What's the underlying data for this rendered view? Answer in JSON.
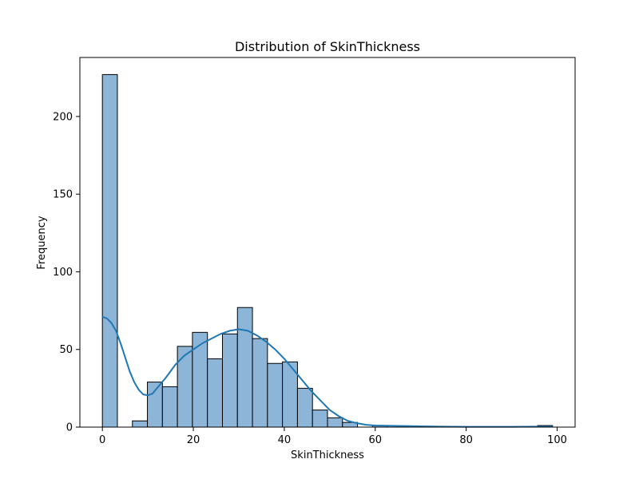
{
  "chart_data": {
    "type": "histogram",
    "title": "Distribution of SkinThickness",
    "xlabel": "SkinThickness",
    "ylabel": "Frequency",
    "xlim": [
      -4.95,
      103.95
    ],
    "ylim": [
      0,
      238
    ],
    "xticks": [
      0,
      20,
      40,
      60,
      80,
      100
    ],
    "yticks": [
      0,
      50,
      100,
      150,
      200
    ],
    "bin_width": 3.3,
    "bins": [
      {
        "start": 0.0,
        "count": 227
      },
      {
        "start": 3.3,
        "count": 0
      },
      {
        "start": 6.6,
        "count": 4
      },
      {
        "start": 9.9,
        "count": 29
      },
      {
        "start": 13.2,
        "count": 26
      },
      {
        "start": 16.5,
        "count": 52
      },
      {
        "start": 19.8,
        "count": 61
      },
      {
        "start": 23.1,
        "count": 44
      },
      {
        "start": 26.4,
        "count": 60
      },
      {
        "start": 29.7,
        "count": 77
      },
      {
        "start": 33.0,
        "count": 57
      },
      {
        "start": 36.3,
        "count": 41
      },
      {
        "start": 39.6,
        "count": 42
      },
      {
        "start": 42.9,
        "count": 25
      },
      {
        "start": 46.2,
        "count": 11
      },
      {
        "start": 49.5,
        "count": 6
      },
      {
        "start": 52.8,
        "count": 3
      },
      {
        "start": 56.1,
        "count": 0
      },
      {
        "start": 59.4,
        "count": 1
      },
      {
        "start": 62.7,
        "count": 0
      },
      {
        "start": 66.0,
        "count": 0
      },
      {
        "start": 69.3,
        "count": 0
      },
      {
        "start": 72.6,
        "count": 0
      },
      {
        "start": 75.9,
        "count": 0
      },
      {
        "start": 79.2,
        "count": 0
      },
      {
        "start": 82.5,
        "count": 0
      },
      {
        "start": 85.8,
        "count": 0
      },
      {
        "start": 89.1,
        "count": 0
      },
      {
        "start": 92.4,
        "count": 0
      },
      {
        "start": 95.7,
        "count": 1
      }
    ],
    "kde": {
      "x": [
        0,
        1,
        2,
        3,
        4,
        5,
        6,
        7,
        8,
        9,
        10,
        11,
        12,
        14,
        16,
        18,
        20,
        22,
        24,
        26,
        28,
        30,
        32,
        34,
        36,
        38,
        40,
        42,
        44,
        46,
        48,
        50,
        52,
        54,
        56,
        58,
        60,
        65,
        70,
        75,
        80,
        85,
        90,
        95,
        99
      ],
      "y": [
        71,
        70,
        67,
        62,
        54,
        45,
        36,
        29,
        24,
        21,
        20.5,
        21.5,
        25,
        32,
        40,
        46,
        50,
        54,
        57,
        60,
        62,
        63,
        62,
        59,
        55,
        50,
        44,
        37,
        30,
        23,
        17,
        11,
        7,
        4,
        2.5,
        1.5,
        1,
        0.8,
        0.5,
        0.3,
        0.2,
        0.2,
        0.2,
        0.3,
        0.3
      ]
    },
    "colors": {
      "bar_fill": "#8db5d8",
      "bar_edge": "#000000",
      "kde_line": "#1f77b4"
    }
  }
}
